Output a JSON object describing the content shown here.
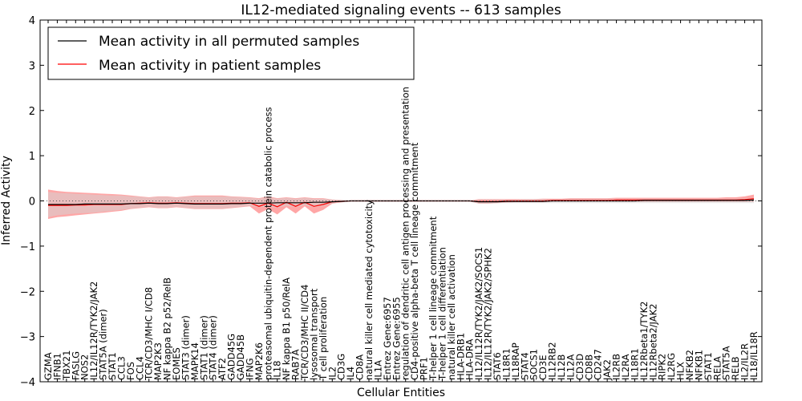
{
  "chart_data": {
    "type": "line",
    "title": "IL12-mediated signaling events -- 613 samples",
    "xlabel": "Cellular Entities",
    "ylabel": "Inferred Activity",
    "ylim": [
      -4,
      4
    ],
    "yticks": [
      "−4",
      "−3",
      "−2",
      "−1",
      "0",
      "1",
      "2",
      "3",
      "4"
    ],
    "reference_line": 0,
    "legend": {
      "placement": "top-left",
      "entries": [
        {
          "label": "Mean activity in all permuted samples",
          "color": "#000000"
        },
        {
          "label": "Mean activity in patient samples",
          "color": "#ff0000"
        }
      ]
    },
    "categories": [
      "GZMA",
      "IFNB1",
      "TBX21",
      "FASLG",
      "NOS2",
      "IL12/IL12R/TYK2/JAK2",
      "STAT5A (dimer)",
      "STAT1",
      "CCL3",
      "FOS",
      "CCL4",
      "TCR/CD3/MHC I/CD8",
      "MAP2K3",
      "NF kappa B2 p52/RelB",
      "EOMES",
      "STAT3 (dimer)",
      "MAPK14",
      "STAT1 (dimer)",
      "STAT4 (dimer)",
      "ATF2",
      "GADD45G",
      "GADD45B",
      "IFNG",
      "MAP2K6",
      "proteasomal ubiquitin-dependent protein catabolic process",
      "IL18",
      "NF kappa B1 p50/RelA",
      "RAB7A",
      "TCR/CD3/MHC II/CD4",
      "lysosomal transport",
      "T cell proliferation",
      "IL2",
      "CD3G",
      "IL4",
      "CD8A",
      "natural killer cell mediated cytotoxicity",
      "IL1A",
      "Entrez Gene:6957",
      "Entrez Gene:6955",
      "regulation of dendritic cell antigen processing and presentation",
      "CD4-positive alpha-beta T cell lineage commitment",
      "PRF1",
      "T-helper 1 cell lineage commitment",
      "T-helper 1 cell differentiation",
      "natural killer cell activation",
      "HLA-DRB1",
      "HLA-DRA",
      "IL12/IL12R/TYK2/JAK2/SOCS1",
      "IL12/IL12R/TYK2/JAK2/SPHK2",
      "STAT6",
      "IL18R1",
      "IL18RAP",
      "STAT4",
      "SOCS1",
      "CD3E",
      "IL12RB2",
      "IL12B",
      "IL12A",
      "CD3D",
      "CD8B",
      "CD247",
      "JAK2",
      "IL2RB",
      "IL2RA",
      "IL18R1",
      "IL12Rbeta1/TYK2",
      "IL12Rbeta2/JAK2",
      "RIPK2",
      "IL2RG",
      "HLX",
      "NFKB2",
      "NFKB1",
      "STAT1",
      "RELA",
      "STAT5A",
      "RELB",
      "IL2/IL2R",
      "IL18/IL18R"
    ],
    "series": [
      {
        "name": "Mean activity in all permuted samples",
        "values": [
          -0.08,
          -0.08,
          -0.08,
          -0.08,
          -0.07,
          -0.07,
          -0.07,
          -0.07,
          -0.07,
          -0.06,
          -0.06,
          -0.05,
          -0.06,
          -0.06,
          -0.05,
          -0.06,
          -0.07,
          -0.07,
          -0.07,
          -0.07,
          -0.06,
          -0.06,
          -0.05,
          -0.05,
          -0.05,
          -0.04,
          -0.04,
          -0.04,
          -0.04,
          -0.03,
          -0.03,
          -0.02,
          -0.01,
          0,
          0,
          0,
          0,
          0,
          0,
          0,
          0,
          0,
          0,
          0,
          0,
          0,
          0,
          -0.02,
          -0.02,
          -0.02,
          -0.01,
          -0.01,
          -0.01,
          -0.01,
          -0.01,
          0,
          0,
          0,
          0,
          0,
          0,
          0,
          0,
          0,
          0,
          0.01,
          0.01,
          0.01,
          0.01,
          0.01,
          0.01,
          0.01,
          0.01,
          0.01,
          0.01,
          0.01,
          0.01,
          0.02
        ]
      },
      {
        "name": "Mean activity in patient samples",
        "values": [
          -0.1,
          -0.1,
          -0.1,
          -0.09,
          -0.09,
          -0.08,
          -0.08,
          -0.08,
          -0.08,
          -0.06,
          -0.05,
          -0.04,
          -0.05,
          -0.05,
          -0.04,
          -0.05,
          -0.06,
          -0.06,
          -0.06,
          -0.06,
          -0.05,
          -0.05,
          -0.04,
          -0.12,
          -0.05,
          -0.13,
          -0.03,
          -0.12,
          -0.03,
          -0.12,
          -0.08,
          -0.02,
          -0.01,
          0,
          0,
          0,
          0,
          0,
          0,
          0,
          0,
          0,
          0,
          0,
          0,
          0,
          0,
          -0.01,
          -0.01,
          -0.01,
          0,
          0,
          0,
          0,
          0,
          0.01,
          0.01,
          0.01,
          0.01,
          0.01,
          0.01,
          0.01,
          0.02,
          0.02,
          0.02,
          0.02,
          0.02,
          0.02,
          0.02,
          0.02,
          0.02,
          0.02,
          0.02,
          0.02,
          0.02,
          0.02,
          0.03,
          0.05
        ]
      }
    ],
    "bands": [
      {
        "name": "patient spread",
        "color": "#ff8080",
        "lower": [
          -0.4,
          -0.36,
          -0.34,
          -0.32,
          -0.3,
          -0.28,
          -0.26,
          -0.24,
          -0.22,
          -0.18,
          -0.16,
          -0.14,
          -0.16,
          -0.16,
          -0.14,
          -0.16,
          -0.18,
          -0.18,
          -0.18,
          -0.18,
          -0.16,
          -0.14,
          -0.12,
          -0.28,
          -0.18,
          -0.3,
          -0.14,
          -0.28,
          -0.12,
          -0.28,
          -0.2,
          -0.06,
          -0.03,
          -0.01,
          -0.01,
          -0.01,
          -0.01,
          -0.01,
          -0.01,
          -0.01,
          -0.01,
          -0.01,
          -0.01,
          -0.01,
          -0.01,
          -0.01,
          -0.01,
          -0.06,
          -0.06,
          -0.05,
          -0.04,
          -0.03,
          -0.03,
          -0.03,
          -0.03,
          -0.02,
          -0.02,
          -0.02,
          -0.02,
          -0.02,
          -0.02,
          -0.02,
          -0.02,
          -0.02,
          -0.02,
          -0.02,
          -0.02,
          -0.02,
          -0.02,
          -0.02,
          -0.02,
          -0.02,
          -0.02,
          -0.02,
          -0.02,
          -0.02,
          -0.02,
          -0.02
        ],
        "upper": [
          0.25,
          0.22,
          0.2,
          0.19,
          0.18,
          0.17,
          0.16,
          0.15,
          0.14,
          0.12,
          0.1,
          0.08,
          0.1,
          0.1,
          0.08,
          0.1,
          0.12,
          0.12,
          0.12,
          0.12,
          0.1,
          0.09,
          0.08,
          0.06,
          0.1,
          0.06,
          0.08,
          0.06,
          0.08,
          0.06,
          0.06,
          0.03,
          0.02,
          0.01,
          0.01,
          0.01,
          0.01,
          0.01,
          0.01,
          0.01,
          0.01,
          0.01,
          0.01,
          0.01,
          0.01,
          0.01,
          0.01,
          0.04,
          0.04,
          0.04,
          0.04,
          0.04,
          0.04,
          0.04,
          0.05,
          0.05,
          0.05,
          0.06,
          0.06,
          0.06,
          0.06,
          0.06,
          0.07,
          0.07,
          0.07,
          0.07,
          0.07,
          0.07,
          0.07,
          0.07,
          0.07,
          0.07,
          0.07,
          0.07,
          0.08,
          0.08,
          0.1,
          0.14
        ]
      },
      {
        "name": "permuted spread",
        "color": "#d3d3d3",
        "lower": [
          -0.36,
          -0.32,
          -0.3,
          -0.28,
          -0.27,
          -0.26,
          -0.24,
          -0.22,
          -0.2,
          -0.17,
          -0.15,
          -0.13,
          -0.15,
          -0.15,
          -0.13,
          -0.15,
          -0.17,
          -0.17,
          -0.17,
          -0.17,
          -0.15,
          -0.13,
          -0.11,
          -0.14,
          -0.13,
          -0.15,
          -0.11,
          -0.14,
          -0.1,
          -0.14,
          -0.12,
          -0.05,
          -0.02,
          -0.01,
          -0.01,
          -0.01,
          -0.01,
          -0.01,
          -0.01,
          -0.01,
          -0.01,
          -0.01,
          -0.01,
          -0.01,
          -0.01,
          -0.01,
          -0.01,
          -0.06,
          -0.06,
          -0.05,
          -0.05,
          -0.05,
          -0.05,
          -0.05,
          -0.05,
          -0.05,
          -0.05,
          -0.05,
          -0.05,
          -0.05,
          -0.05,
          -0.05,
          -0.05,
          -0.05,
          -0.05,
          -0.05,
          -0.05,
          -0.05,
          -0.05,
          -0.05,
          -0.05,
          -0.05,
          -0.05,
          -0.05,
          -0.05,
          -0.05,
          -0.05,
          -0.05
        ],
        "upper": [
          0.2,
          0.18,
          0.17,
          0.16,
          0.15,
          0.14,
          0.13,
          0.12,
          0.12,
          0.1,
          0.09,
          0.07,
          0.09,
          0.09,
          0.07,
          0.09,
          0.1,
          0.1,
          0.1,
          0.1,
          0.09,
          0.08,
          0.07,
          0.05,
          0.08,
          0.05,
          0.07,
          0.05,
          0.07,
          0.05,
          0.05,
          0.03,
          0.02,
          0.01,
          0.01,
          0.01,
          0.01,
          0.01,
          0.01,
          0.01,
          0.01,
          0.01,
          0.01,
          0.01,
          0.01,
          0.01,
          0.01,
          0.03,
          0.03,
          0.03,
          0.03,
          0.03,
          0.04,
          0.04,
          0.04,
          0.04,
          0.04,
          0.05,
          0.05,
          0.05,
          0.05,
          0.05,
          0.05,
          0.05,
          0.05,
          0.05,
          0.05,
          0.05,
          0.05,
          0.05,
          0.05,
          0.05,
          0.05,
          0.05,
          0.05,
          0.05,
          0.06,
          0.07
        ]
      }
    ]
  }
}
